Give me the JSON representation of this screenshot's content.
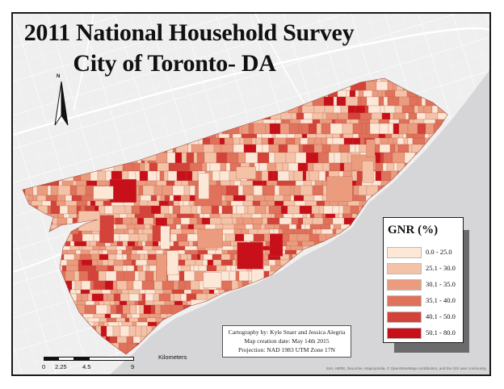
{
  "map": {
    "title_line1": "2011 National Household Survey",
    "title_line2": "City of Toronto- DA",
    "north_arrow_label": "N",
    "legend": {
      "title": "GNR (%)",
      "classes": [
        {
          "label": "0.0 - 25.0",
          "color": "#fde8d7"
        },
        {
          "label": "25.1 - 30.0",
          "color": "#f4c3a7"
        },
        {
          "label": "30.1 - 35.0",
          "color": "#eb9c7f"
        },
        {
          "label": "35.1 - 40.0",
          "color": "#e0715a"
        },
        {
          "label": "40.1 - 50.0",
          "color": "#d4433a"
        },
        {
          "label": "50.1 - 80.0",
          "color": "#c8101a"
        }
      ]
    },
    "credits": {
      "line1": "Cartography by: Kyle Snarr and Jessica Alegria",
      "line2": "Map creation date: May 14th 2015",
      "line3": "Projection: NAD 1983 UTM Zone 17N"
    },
    "scale_bar": {
      "units": "Kilometers",
      "ticks": [
        "0",
        "2.25",
        "4.5",
        "9"
      ]
    },
    "attribution": "Esri, HERE, DeLorme, MapmyIndia, © OpenStreetMap contributors, and the GIS user community",
    "colors": {
      "land": "#f0f0f0",
      "water": "#d6d6d9",
      "frame": "#1a1a1a"
    }
  }
}
